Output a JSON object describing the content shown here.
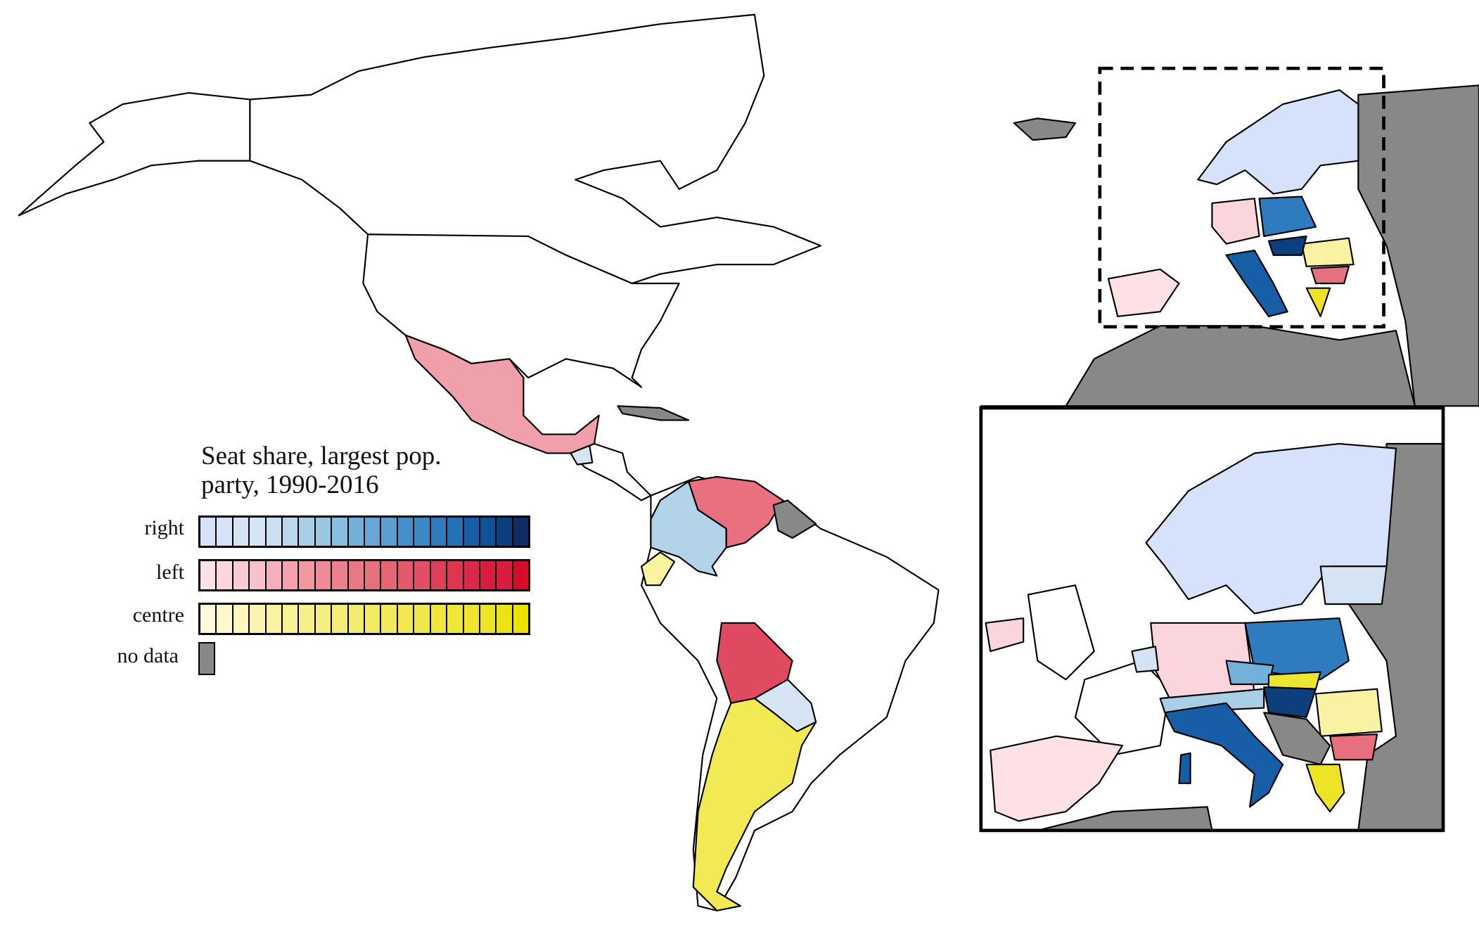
{
  "legend": {
    "title_line1": "Seat share, largest pop.",
    "title_line2": "party, 1990-2016",
    "rows": [
      {
        "label": "right",
        "colors": [
          "#d6e2fb",
          "#d5e3f8",
          "#d5e4f4",
          "#d4e5f3",
          "#cadff0",
          "#bcd6eb",
          "#a8cfe5",
          "#99c7e2",
          "#88bedf",
          "#74b1da",
          "#65a8d6",
          "#5a9fd0",
          "#4590c8",
          "#3a88c4",
          "#2e7bbd",
          "#2571b5",
          "#185ea7",
          "#0f529b",
          "#0d3f7e",
          "#0f2c64"
        ]
      },
      {
        "label": "left",
        "colors": [
          "#fde1e5",
          "#fbd6dc",
          "#f9ccd3",
          "#f7c1ca",
          "#f5b0bb",
          "#f3a2ae",
          "#f1989f",
          "#ee8b97",
          "#ec808e",
          "#ea7786",
          "#e86f7e",
          "#e66475",
          "#e35a6c",
          "#e24e63",
          "#df4059",
          "#de3550",
          "#dc2949",
          "#d81c3e",
          "#d81d3f",
          "#d40c2c"
        ]
      },
      {
        "label": "centre",
        "colors": [
          "#fffad8",
          "#fff8cc",
          "#fdf6be",
          "#fbf4b0",
          "#f9f2a2",
          "#f8f196",
          "#f7ef89",
          "#f6ee80",
          "#f5ed78",
          "#f4ec6e",
          "#f3ea64",
          "#f2e95c",
          "#f1e852",
          "#f0e74a",
          "#efe640",
          "#eee638",
          "#ede530",
          "#ece425",
          "#ebe316",
          "#ebe200"
        ]
      },
      {
        "label": "no data",
        "colors": [
          "#888888"
        ]
      }
    ]
  },
  "colors": {
    "no_data": "#888888",
    "mexico": "#f0a0aa",
    "venezuela": "#e8707f",
    "colombia": "#b3d3e8",
    "ecuador": "#f8f4a0",
    "bolivia": "#e04a60",
    "paraguay": "#d6e4f4",
    "argentina": "#f2ea55"
  }
}
